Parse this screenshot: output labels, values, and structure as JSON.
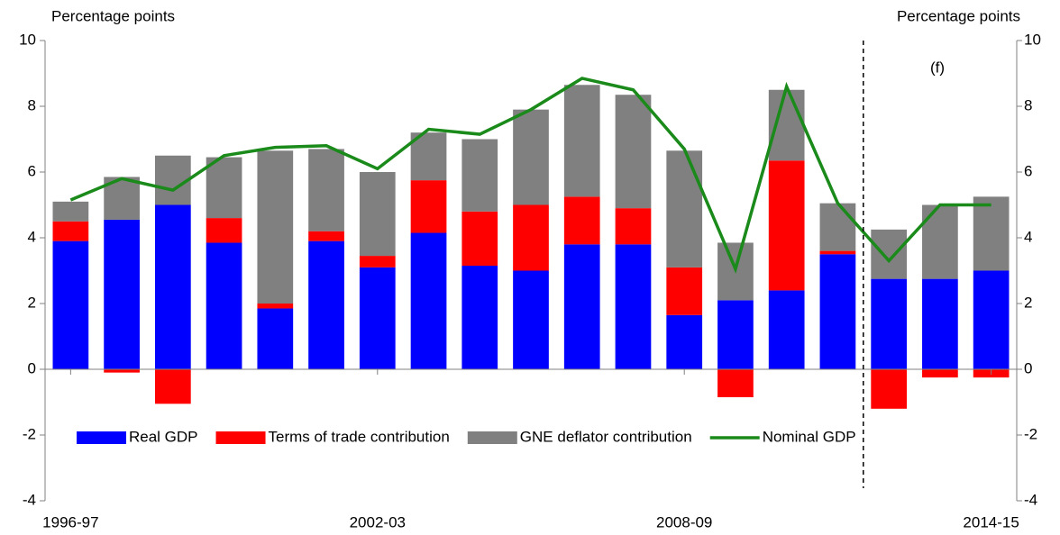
{
  "chart_data": {
    "type": "bar",
    "stacked": true,
    "y_label": "Percentage points",
    "y2_label": "Percentage points",
    "annotation": "(f)",
    "forecast_start": 16,
    "categories": [
      "1996-97",
      null,
      null,
      null,
      null,
      null,
      "2002-03",
      null,
      null,
      null,
      null,
      null,
      "2008-09",
      null,
      null,
      null,
      null,
      null,
      "2014-15"
    ],
    "series": [
      {
        "name": "Real GDP",
        "type": "bar",
        "color": "#0000ff",
        "values": [
          3.9,
          4.55,
          5.0,
          3.85,
          1.85,
          3.9,
          3.1,
          4.15,
          3.15,
          3.0,
          3.8,
          3.8,
          1.65,
          2.1,
          2.4,
          3.5,
          2.75,
          2.75,
          3.0
        ]
      },
      {
        "name": "Terms of trade contribution",
        "type": "bar",
        "color": "#ff0000",
        "values": [
          0.6,
          -0.1,
          -1.05,
          0.75,
          0.15,
          0.3,
          0.35,
          1.6,
          1.65,
          2.0,
          1.45,
          1.1,
          1.45,
          -0.85,
          3.95,
          0.1,
          -1.2,
          -0.25,
          -0.25
        ]
      },
      {
        "name": "GNE deflator contribution",
        "type": "bar",
        "color": "#808080",
        "values": [
          0.6,
          1.3,
          1.5,
          1.85,
          4.65,
          2.5,
          2.55,
          1.45,
          2.2,
          2.9,
          3.4,
          3.45,
          3.55,
          1.75,
          2.15,
          1.45,
          1.5,
          2.25,
          2.25
        ]
      },
      {
        "name": "Nominal GDP",
        "type": "line",
        "color": "#1a8a1a",
        "values": [
          5.15,
          5.8,
          5.45,
          6.5,
          6.75,
          6.8,
          6.1,
          7.3,
          7.15,
          7.9,
          8.85,
          8.5,
          6.7,
          3.05,
          8.6,
          5.05,
          3.3,
          5.0,
          5.0
        ]
      }
    ],
    "ylim": [
      -4,
      10
    ],
    "yticks": [
      -4,
      -2,
      0,
      2,
      4,
      6,
      8,
      10
    ],
    "y2lim": [
      -4,
      10
    ],
    "y2ticks": [
      -4,
      -2,
      0,
      2,
      4,
      6,
      8,
      10
    ]
  }
}
